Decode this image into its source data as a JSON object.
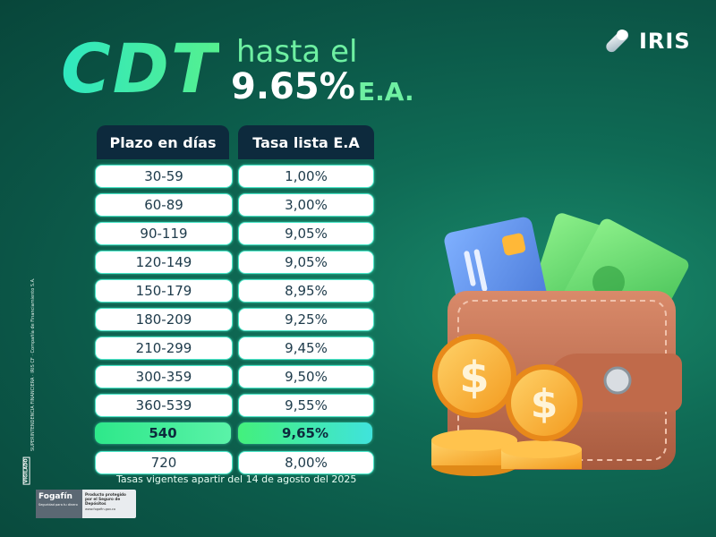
{
  "headline": {
    "product": "CDT",
    "prefix": "hasta el",
    "rate": "9.65%",
    "rate_suffix": "E.A."
  },
  "brand": {
    "name": "IRIS"
  },
  "table": {
    "headers": [
      "Plazo en días",
      "Tasa lista E.A"
    ],
    "rows": [
      {
        "plazo": "30-59",
        "tasa": "1,00%"
      },
      {
        "plazo": "60-89",
        "tasa": "3,00%"
      },
      {
        "plazo": "90-119",
        "tasa": "9,05%"
      },
      {
        "plazo": "120-149",
        "tasa": "9,05%"
      },
      {
        "plazo": "150-179",
        "tasa": "8,95%"
      },
      {
        "plazo": "180-209",
        "tasa": "9,25%"
      },
      {
        "plazo": "210-299",
        "tasa": "9,45%"
      },
      {
        "plazo": "300-359",
        "tasa": "9,50%"
      },
      {
        "plazo": "360-539",
        "tasa": "9,55%"
      },
      {
        "plazo": "540",
        "tasa": "9,65%",
        "highlight": true
      },
      {
        "plazo": "720",
        "tasa": "8,00%"
      }
    ]
  },
  "footnote": "Tasas vigentes apartir del 14 de agosto del 2025",
  "legal": {
    "vigilado": "VIGILADO",
    "side_text": "SUPERINTENDENCIA FINANCIERA · IRIS CF · Compañía de Financiamiento S.A."
  },
  "fogafin": {
    "name": "Fogafín",
    "tagline": "Seguridad para tu dinero",
    "product_text": "Producto protegido por el Seguro de Depósitos",
    "url": "www.fogafin.gov.co"
  },
  "illustration": {
    "icon": "wallet-with-card-cash-and-dollar-coins"
  },
  "colors": {
    "background": "#0f6b55",
    "accent_green": "#6ef0a2",
    "header_navy": "#0d2a3d",
    "highlight": "#43f07c"
  }
}
